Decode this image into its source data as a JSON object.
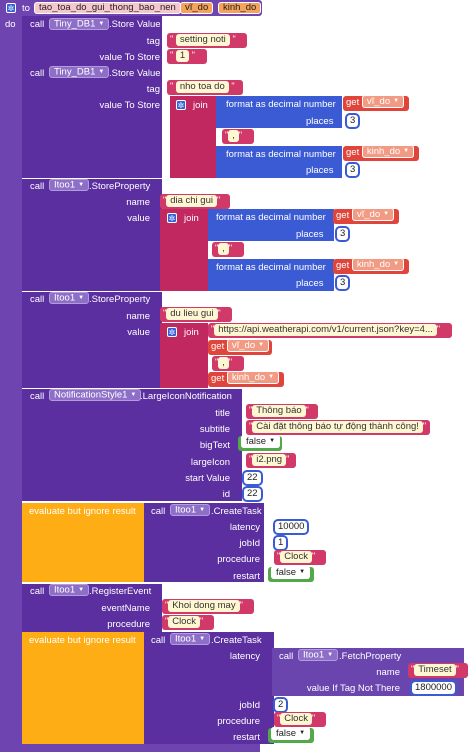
{
  "proc": {
    "to": "to",
    "name": "tao_toa_do_gui_thong_bao_nen",
    "params": [
      "vĩ_do",
      "kinh_do"
    ],
    "do": "do"
  },
  "common": {
    "call": "call",
    "get": "get",
    "join": "join",
    "format": "format as decimal number",
    "places": "places",
    "evaluate": "evaluate but ignore result",
    "quote_open": "\"",
    "quote_close": "\""
  },
  "blocks": {
    "b1": {
      "component": "Tiny_DB1",
      "method": ".Store Value",
      "tag_label": "tag",
      "tag": "setting noti",
      "value_label": "value To Store",
      "value": "1"
    },
    "b2": {
      "component": "Tiny_DB1",
      "method": ".Store Value",
      "tag_label": "tag",
      "tag": "nho toa do",
      "value_label": "value To Store",
      "var1": "vĩ_do",
      "places1": "3",
      "sep": ",",
      "var2": "kinh_do",
      "places2": "3"
    },
    "b3": {
      "component": "Itoo1",
      "method": ".StoreProperty",
      "name_label": "name",
      "name": "dia chi gui",
      "value_label": "value",
      "var1": "vĩ_do",
      "places1": "3",
      "sep": ",",
      "var2": "kinh_do",
      "places2": "3"
    },
    "b4": {
      "component": "Itoo1",
      "method": ".StoreProperty",
      "name_label": "name",
      "name": "du lieu gui",
      "value_label": "value",
      "url": "https://api.weatherapi.com/v1/current.json?key=4...",
      "var1": "vĩ_do",
      "sep": ",",
      "var2": "kinh_do"
    },
    "b5": {
      "component": "NotificationStyle1",
      "method": ".LargeIconNotification",
      "title_label": "title",
      "title": "Thông báo",
      "subtitle_label": "subtitle",
      "subtitle": "Cài đặt thông báo tự động thành công!",
      "bigtext_label": "bigText",
      "bigtext": "false",
      "largeicon_label": "largeIcon",
      "largeicon": "i2.png",
      "start_label": "start Value",
      "start": "22",
      "id_label": "id",
      "id": "22"
    },
    "b6": {
      "component": "Itoo1",
      "method": ".CreateTask",
      "latency_label": "latency",
      "latency": "10000",
      "jobid_label": "jobId",
      "jobid": "1",
      "procedure_label": "procedure",
      "procedure": "Clock",
      "restart_label": "restart",
      "restart": "false"
    },
    "b7": {
      "component": "Itoo1",
      "method": ".RegisterEvent",
      "event_label": "eventName",
      "event": "Khoi dong may",
      "procedure_label": "procedure",
      "procedure": "Clock"
    },
    "b8": {
      "component": "Itoo1",
      "method": ".CreateTask",
      "latency_label": "latency",
      "fetch_component": "Itoo1",
      "fetch_method": ".FetchProperty",
      "fname_label": "name",
      "fname": "Timeset",
      "fvalue_label": "value If Tag Not There",
      "fvalue": "1800000",
      "jobid_label": "jobId",
      "jobid": "2",
      "procedure_label": "procedure",
      "procedure": "Clock",
      "restart_label": "restart",
      "restart": "false"
    }
  }
}
